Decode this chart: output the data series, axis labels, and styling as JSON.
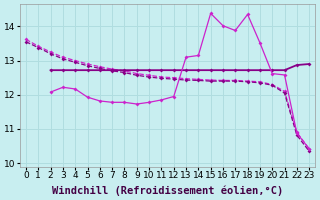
{
  "xlabel": "Windchill (Refroidissement éolien,°C)",
  "bg_color": "#c8eef0",
  "grid_color": "#b0dde0",
  "xlim": [
    -0.5,
    23.5
  ],
  "ylim": [
    9.9,
    14.65
  ],
  "yticks": [
    10,
    11,
    12,
    13,
    14
  ],
  "xticks": [
    0,
    1,
    2,
    3,
    4,
    5,
    6,
    7,
    8,
    9,
    10,
    11,
    12,
    13,
    14,
    15,
    16,
    17,
    18,
    19,
    20,
    21,
    22,
    23
  ],
  "curve_dashed1_x": [
    0,
    1,
    2,
    3,
    4,
    5,
    6,
    7,
    8,
    9,
    10,
    11,
    12,
    13,
    14,
    15,
    16,
    17,
    18,
    19,
    20,
    21,
    22,
    23
  ],
  "curve_dashed1_y": [
    13.62,
    13.42,
    13.25,
    13.1,
    13.0,
    12.9,
    12.82,
    12.75,
    12.7,
    12.62,
    12.57,
    12.52,
    12.5,
    12.47,
    12.45,
    12.43,
    12.42,
    12.42,
    12.4,
    12.38,
    12.3,
    12.1,
    10.9,
    10.42
  ],
  "curve_solid_flat_x": [
    2,
    3,
    4,
    5,
    6,
    7,
    8,
    9,
    10,
    11,
    12,
    13,
    14,
    15,
    16,
    17,
    18,
    19,
    20,
    21,
    22,
    23
  ],
  "curve_solid_flat_y": [
    12.72,
    12.72,
    12.72,
    12.72,
    12.72,
    12.72,
    12.72,
    12.72,
    12.72,
    12.72,
    12.72,
    12.72,
    12.72,
    12.72,
    12.72,
    12.72,
    12.72,
    12.72,
    12.72,
    12.72,
    12.87,
    12.9
  ],
  "curve_wavy_x": [
    2,
    3,
    4,
    5,
    6,
    7,
    8,
    9,
    10,
    11,
    12,
    13,
    14,
    15,
    16,
    17,
    18,
    19,
    20,
    21,
    22,
    23
  ],
  "curve_wavy_y": [
    12.08,
    12.22,
    12.17,
    11.93,
    11.82,
    11.78,
    11.78,
    11.73,
    11.78,
    11.85,
    11.95,
    13.1,
    13.15,
    14.38,
    14.02,
    13.88,
    14.35,
    13.52,
    12.62,
    12.58,
    10.88,
    10.42
  ],
  "curve_dashed2_x": [
    0,
    1,
    2,
    3,
    4,
    5,
    6,
    7,
    8,
    9,
    10,
    11,
    12,
    13,
    14,
    15,
    16,
    17,
    18,
    19,
    20,
    21,
    22,
    23
  ],
  "curve_dashed2_y": [
    13.55,
    13.38,
    13.2,
    13.05,
    12.95,
    12.85,
    12.77,
    12.7,
    12.65,
    12.57,
    12.52,
    12.48,
    12.46,
    12.43,
    12.42,
    12.4,
    12.4,
    12.4,
    12.38,
    12.35,
    12.28,
    12.05,
    10.82,
    10.35
  ],
  "tick_fontsize": 6.5,
  "label_fontsize": 7.5,
  "lc_bright": "#cc22cc",
  "lc_dark": "#880088"
}
